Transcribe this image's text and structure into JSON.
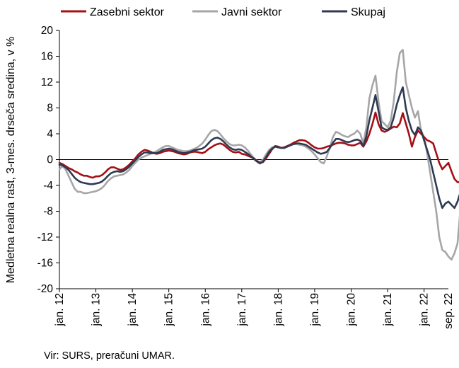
{
  "chart_data": {
    "type": "line",
    "title": "",
    "xlabel": "",
    "ylabel": "Medletna realna rast, 3-mes. drseča sredina, v %",
    "ylim": [
      -20,
      20
    ],
    "y_ticks": [
      -20,
      -16,
      -12,
      -8,
      -4,
      0,
      4,
      8,
      12,
      16,
      20
    ],
    "x_range": [
      "2012-01",
      "2022-09"
    ],
    "x_tick_labels": [
      "jan. 12",
      "jan. 13",
      "jan. 14",
      "jan. 15",
      "jan. 16",
      "jan. 17",
      "jan. 18",
      "jan. 19",
      "jan. 20",
      "jan. 21",
      "jan. 22",
      "sep. 22"
    ],
    "legend_position": "top",
    "grid": false,
    "series": [
      {
        "name": "Zasebni sektor",
        "color": "#a50f15",
        "values": [
          -0.5,
          -0.7,
          -1.0,
          -1.3,
          -1.5,
          -1.8,
          -2.0,
          -2.3,
          -2.5,
          -2.5,
          -2.7,
          -2.8,
          -2.6,
          -2.6,
          -2.4,
          -2.0,
          -1.5,
          -1.2,
          -1.2,
          -1.4,
          -1.6,
          -1.5,
          -1.2,
          -0.8,
          -0.3,
          0.2,
          0.8,
          1.2,
          1.5,
          1.4,
          1.2,
          1.0,
          0.9,
          1.0,
          1.2,
          1.3,
          1.4,
          1.3,
          1.2,
          1.0,
          0.9,
          0.8,
          0.9,
          1.1,
          1.2,
          1.2,
          1.1,
          1.0,
          1.2,
          1.6,
          1.9,
          2.2,
          2.4,
          2.5,
          2.3,
          1.9,
          1.5,
          1.2,
          1.1,
          1.2,
          0.9,
          0.8,
          0.6,
          0.4,
          0.2,
          -0.2,
          -0.5,
          -0.4,
          0.2,
          0.9,
          1.6,
          2.1,
          2.0,
          1.8,
          1.9,
          2.1,
          2.3,
          2.6,
          2.8,
          3.0,
          3.0,
          2.9,
          2.6,
          2.2,
          1.9,
          1.7,
          1.7,
          1.8,
          2.0,
          2.1,
          2.3,
          2.5,
          2.6,
          2.6,
          2.5,
          2.3,
          2.2,
          2.2,
          2.4,
          2.6,
          2.0,
          2.8,
          4.0,
          5.5,
          7.3,
          5.5,
          4.5,
          4.3,
          4.5,
          4.8,
          5.1,
          5.0,
          5.6,
          7.2,
          5.6,
          4.0,
          2.0,
          3.5,
          4.5,
          4.0,
          3.5,
          3.0,
          2.8,
          2.5,
          1.0,
          -0.5,
          -1.5,
          -1.0,
          -0.5,
          -1.8,
          -3.0,
          -3.5,
          -3.5
        ]
      },
      {
        "name": "Javni sektor",
        "color": "#a6a6a6",
        "values": [
          -1.5,
          -1.0,
          -1.5,
          -2.5,
          -3.5,
          -4.5,
          -5.0,
          -5.0,
          -5.2,
          -5.2,
          -5.1,
          -5.0,
          -4.9,
          -4.7,
          -4.4,
          -3.9,
          -3.3,
          -2.9,
          -2.6,
          -2.5,
          -2.4,
          -2.3,
          -2.0,
          -1.6,
          -1.0,
          -0.5,
          0.0,
          0.3,
          0.5,
          0.7,
          0.9,
          1.1,
          1.3,
          1.6,
          1.9,
          2.1,
          2.1,
          1.9,
          1.7,
          1.5,
          1.4,
          1.3,
          1.3,
          1.4,
          1.6,
          1.8,
          2.1,
          2.5,
          3.1,
          3.8,
          4.4,
          4.6,
          4.4,
          3.9,
          3.3,
          2.8,
          2.4,
          2.2,
          2.2,
          2.3,
          2.2,
          1.9,
          1.4,
          0.8,
          0.2,
          -0.2,
          -0.4,
          0.0,
          0.8,
          1.5,
          1.9,
          2.0,
          1.9,
          1.8,
          1.9,
          2.1,
          2.3,
          2.4,
          2.4,
          2.3,
          2.2,
          2.0,
          1.7,
          1.3,
          0.8,
          0.2,
          -0.4,
          -0.6,
          0.5,
          1.9,
          3.5,
          4.3,
          4.1,
          3.8,
          3.6,
          3.5,
          3.8,
          4.0,
          4.5,
          4.0,
          2.5,
          5.0,
          9.5,
          11.5,
          13.0,
          9.0,
          6.0,
          5.5,
          5.0,
          6.0,
          9.0,
          13.5,
          16.5,
          17.0,
          12.0,
          10.0,
          8.0,
          6.5,
          7.5,
          4.5,
          3.5,
          1.0,
          -2.0,
          -5.0,
          -8.0,
          -12.0,
          -14.0,
          -14.3,
          -15.0,
          -15.5,
          -14.5,
          -13.0,
          -7.5
        ]
      },
      {
        "name": "Skupaj",
        "color": "#2e3a52",
        "values": [
          -0.8,
          -0.9,
          -1.2,
          -1.6,
          -2.2,
          -2.8,
          -3.2,
          -3.5,
          -3.6,
          -3.7,
          -3.8,
          -3.8,
          -3.7,
          -3.6,
          -3.4,
          -3.0,
          -2.5,
          -2.1,
          -1.9,
          -1.8,
          -1.9,
          -1.8,
          -1.5,
          -1.1,
          -0.6,
          -0.1,
          0.4,
          0.8,
          1.1,
          1.1,
          1.0,
          1.0,
          1.0,
          1.2,
          1.5,
          1.6,
          1.7,
          1.6,
          1.4,
          1.2,
          1.1,
          1.0,
          1.1,
          1.2,
          1.4,
          1.5,
          1.6,
          1.7,
          2.0,
          2.5,
          3.0,
          3.3,
          3.4,
          3.2,
          2.8,
          2.3,
          1.9,
          1.6,
          1.5,
          1.6,
          1.5,
          1.2,
          0.9,
          0.5,
          0.1,
          -0.3,
          -0.6,
          -0.3,
          0.4,
          1.2,
          1.7,
          2.0,
          1.9,
          1.8,
          1.8,
          2.0,
          2.2,
          2.4,
          2.5,
          2.5,
          2.4,
          2.3,
          2.0,
          1.7,
          1.4,
          1.1,
          0.9,
          1.0,
          1.2,
          1.8,
          2.6,
          3.2,
          3.2,
          3.0,
          2.8,
          2.7,
          2.8,
          3.0,
          3.1,
          2.9,
          2.1,
          3.6,
          6.1,
          8.0,
          10.0,
          7.5,
          5.0,
          4.7,
          4.6,
          5.0,
          6.5,
          8.5,
          10.0,
          11.2,
          8.0,
          6.0,
          4.5,
          3.8,
          5.0,
          4.5,
          3.0,
          1.5,
          0.0,
          -2.0,
          -4.0,
          -6.0,
          -7.5,
          -6.8,
          -6.5,
          -7.0,
          -7.5,
          -6.5,
          -5.0
        ]
      }
    ]
  },
  "source": "Vir: SURS, preračuni UMAR."
}
